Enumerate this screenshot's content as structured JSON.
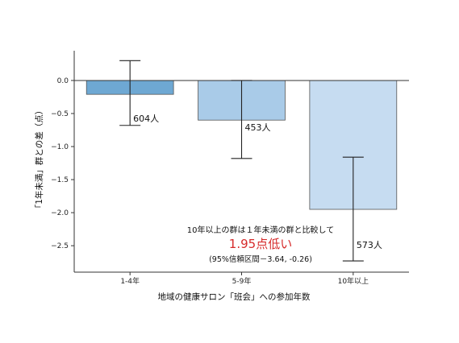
{
  "chart_data": {
    "type": "bar",
    "categories": [
      "1-4年",
      "5-9年",
      "10年以上"
    ],
    "values": [
      -0.21,
      -0.6,
      -1.95
    ],
    "error_low": [
      -0.68,
      -1.18,
      -2.73
    ],
    "error_high": [
      0.3,
      0.0,
      -1.16
    ],
    "n_labels": [
      "604人",
      "453人",
      "573人"
    ],
    "colors": [
      "#6ea8d3",
      "#a9cbe8",
      "#c6dcf1"
    ],
    "bar_edge": "#555555",
    "xlabel": "地域の健康サロン「班会」への参加年数",
    "ylabel": "「1年未満」群との差（点）",
    "ylim": [
      -2.9,
      0.45
    ],
    "yticks": [
      0.0,
      -0.5,
      -1.0,
      -1.5,
      -2.0,
      -2.5
    ],
    "ytick_labels": [
      "0.0",
      "−0.5",
      "−1.0",
      "−1.5",
      "−2.0",
      "−2.5"
    ],
    "grid": false,
    "annotation": {
      "line1": "10年以上の群は１年未満の群と比較して",
      "line2": "1.95点低い",
      "line3": "(95%信頼区間－3.64, -0.26)",
      "highlight_color": "#d62a2a"
    }
  }
}
